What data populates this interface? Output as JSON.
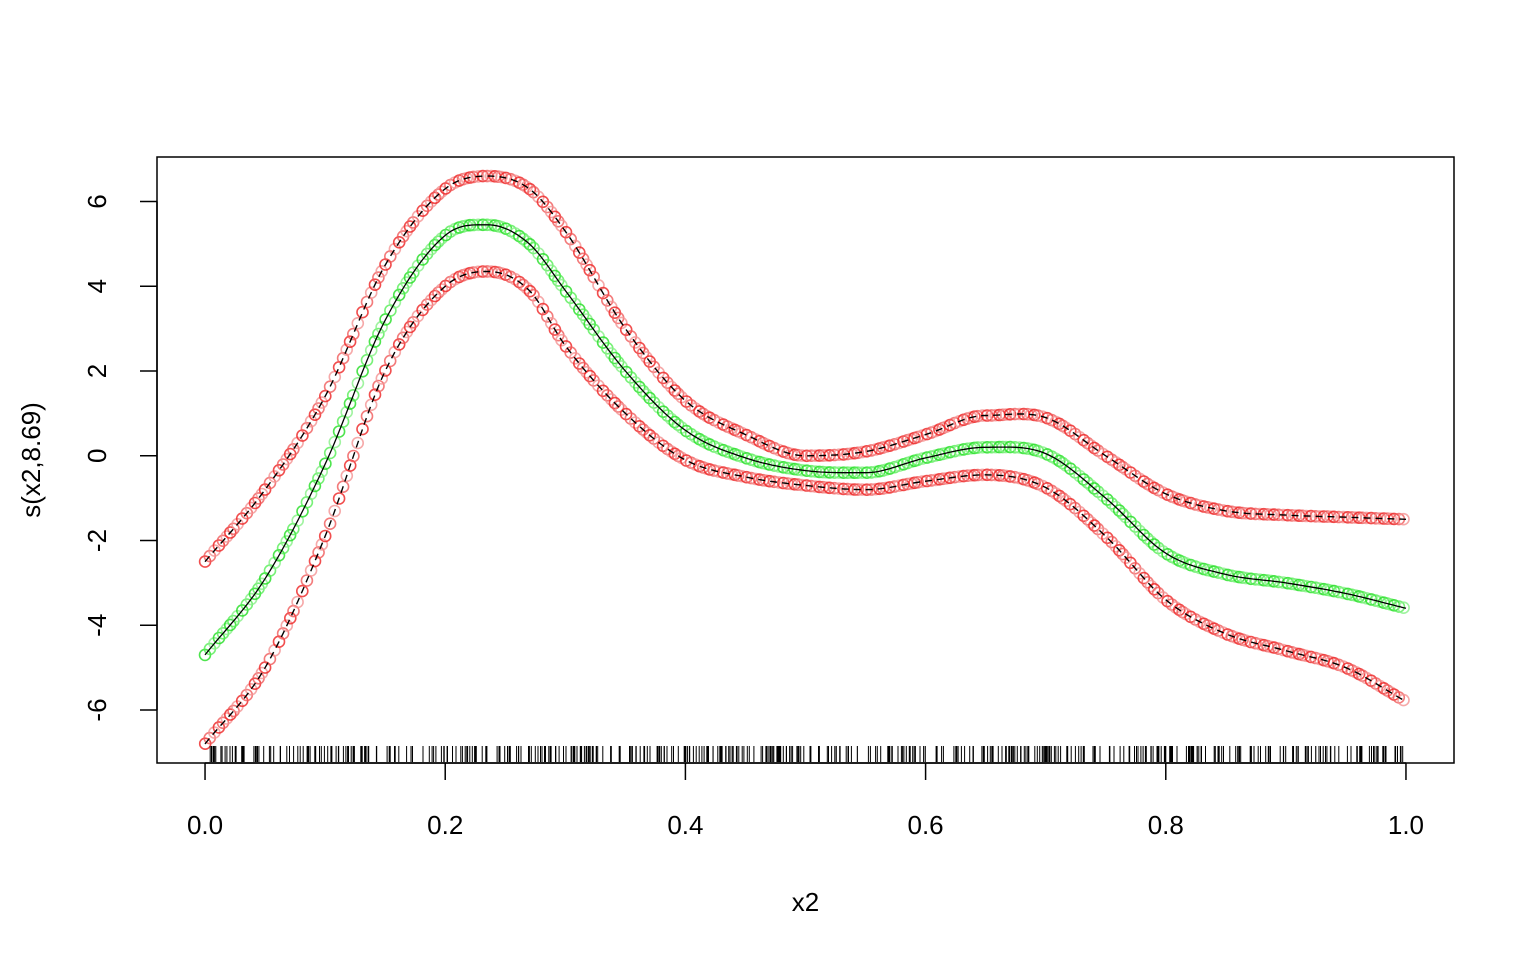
{
  "chart_data": {
    "type": "line",
    "xlabel": "x2",
    "ylabel": "s(x2,8.69)",
    "xlim": [
      -0.04,
      1.04
    ],
    "ylim": [
      -7.25,
      7.05
    ],
    "x_ticks": [
      0.0,
      0.2,
      0.4,
      0.6,
      0.8,
      1.0
    ],
    "x_tick_labels": [
      "0.0",
      "0.2",
      "0.4",
      "0.6",
      "0.8",
      "1.0"
    ],
    "y_ticks": [
      -6,
      -4,
      -2,
      0,
      2,
      4,
      6
    ],
    "y_tick_labels": [
      "-6",
      "-4",
      "-2",
      "0",
      "2",
      "4",
      "6"
    ],
    "grid": false,
    "legend": "none",
    "rug": true,
    "colors": {
      "fit_points": "#22dd22",
      "band_points": "#ee2222",
      "lines": "#000000"
    },
    "series": [
      {
        "role": "fit",
        "marker": "circle",
        "line": "solid",
        "x": [
          0.0,
          0.05,
          0.1,
          0.15,
          0.2,
          0.235,
          0.27,
          0.3,
          0.35,
          0.4,
          0.45,
          0.5,
          0.55,
          0.6,
          0.65,
          0.7,
          0.75,
          0.8,
          0.85,
          0.9,
          0.95,
          1.0
        ],
        "y": [
          -4.7,
          -2.9,
          -0.2,
          3.2,
          5.2,
          5.45,
          5.0,
          3.9,
          2.0,
          0.6,
          -0.05,
          -0.35,
          -0.4,
          -0.05,
          0.2,
          0.05,
          -1.0,
          -2.3,
          -2.8,
          -3.0,
          -3.25,
          -3.6
        ]
      },
      {
        "role": "upper-band",
        "marker": "circle",
        "line": "dashed",
        "x": [
          0.0,
          0.05,
          0.1,
          0.15,
          0.2,
          0.235,
          0.27,
          0.3,
          0.35,
          0.4,
          0.45,
          0.5,
          0.55,
          0.6,
          0.65,
          0.7,
          0.75,
          0.8,
          0.85,
          0.9,
          0.95,
          1.0
        ],
        "y": [
          -2.5,
          -0.8,
          1.4,
          4.5,
          6.3,
          6.6,
          6.3,
          5.3,
          3.0,
          1.3,
          0.5,
          0.0,
          0.1,
          0.5,
          0.95,
          0.9,
          0.0,
          -0.9,
          -1.3,
          -1.4,
          -1.45,
          -1.5
        ]
      },
      {
        "role": "lower-band",
        "marker": "circle",
        "line": "dashed",
        "x": [
          0.0,
          0.05,
          0.1,
          0.15,
          0.2,
          0.235,
          0.27,
          0.3,
          0.35,
          0.4,
          0.45,
          0.5,
          0.55,
          0.6,
          0.65,
          0.7,
          0.75,
          0.8,
          0.85,
          0.9,
          0.95,
          1.0
        ],
        "y": [
          -6.8,
          -5.0,
          -1.9,
          2.0,
          4.0,
          4.35,
          3.9,
          2.6,
          1.0,
          -0.1,
          -0.5,
          -0.7,
          -0.8,
          -0.6,
          -0.45,
          -0.75,
          -1.9,
          -3.4,
          -4.2,
          -4.6,
          -5.0,
          -5.8
        ]
      }
    ]
  }
}
